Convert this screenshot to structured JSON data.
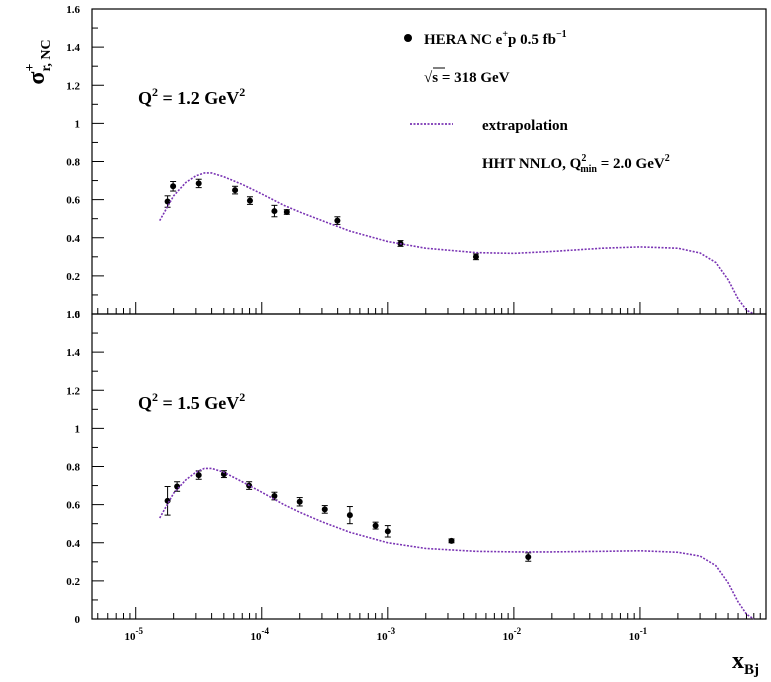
{
  "chart_data": [
    {
      "type": "scatter",
      "panel": "upper",
      "x_scale": "log",
      "xlim": [
        4.5e-06,
        1
      ],
      "ylim": [
        0,
        1.6
      ],
      "y_ticks": [
        "0",
        "0.2",
        "0.4",
        "0.6",
        "0.8",
        "1",
        "1.2",
        "1.4",
        "1.6"
      ],
      "annotation": {
        "base": "Q",
        "sup": "2",
        "value": " = 1.2 GeV",
        "unit_sup": "2"
      },
      "ylabel": {
        "base": "σ",
        "sup": "+",
        "sub": "r, NC"
      },
      "legend": {
        "placement": "top-right",
        "data_label": {
          "base": "HERA NC e",
          "sup1": "+",
          "mid": "p 0.5 fb",
          "sup2": "−1"
        },
        "energy_label": {
          "root": "√",
          "text": "s = 318 GeV"
        },
        "curve_label": "extrapolation",
        "fit_label": {
          "base": "HHT NNLO, Q",
          "sup": "2",
          "sub": "min",
          "rest": " = 2.0 GeV",
          "sup2": "2"
        }
      },
      "series": [
        {
          "name": "HERA NC e+p 0.5 fb-1",
          "kind": "points",
          "points": [
            {
              "x": 1.79e-05,
              "y": 0.59,
              "err": 0.03
            },
            {
              "x": 1.98e-05,
              "y": 0.67,
              "err": 0.025
            },
            {
              "x": 3.16e-05,
              "y": 0.685,
              "err": 0.022
            },
            {
              "x": 6.14e-05,
              "y": 0.65,
              "err": 0.02
            },
            {
              "x": 8.06e-05,
              "y": 0.595,
              "err": 0.02
            },
            {
              "x": 0.000126,
              "y": 0.54,
              "err": 0.03
            },
            {
              "x": 0.000158,
              "y": 0.535,
              "err": 0.012
            },
            {
              "x": 0.000398,
              "y": 0.49,
              "err": 0.02
            },
            {
              "x": 0.00126,
              "y": 0.37,
              "err": 0.015
            },
            {
              "x": 0.005,
              "y": 0.3,
              "err": 0.015
            }
          ]
        },
        {
          "name": "extrapolation",
          "kind": "curve",
          "color": "#7a34b4",
          "x": [
            1.55e-05,
            2e-05,
            2.5e-05,
            3e-05,
            3.5e-05,
            4e-05,
            5e-05,
            7e-05,
            0.0001,
            0.00015,
            0.0002,
            0.0003,
            0.0005,
            0.001,
            0.002,
            0.005,
            0.01,
            0.02,
            0.05,
            0.1,
            0.2,
            0.3,
            0.4,
            0.5,
            0.6,
            0.7,
            0.8
          ],
          "y": [
            0.49,
            0.62,
            0.69,
            0.725,
            0.74,
            0.74,
            0.72,
            0.68,
            0.63,
            0.57,
            0.535,
            0.49,
            0.435,
            0.38,
            0.345,
            0.322,
            0.318,
            0.328,
            0.345,
            0.352,
            0.345,
            0.32,
            0.27,
            0.18,
            0.08,
            0.02,
            0.0
          ]
        }
      ]
    },
    {
      "type": "scatter",
      "panel": "lower",
      "x_scale": "log",
      "xlim": [
        4.5e-06,
        1
      ],
      "ylim": [
        0,
        1.6
      ],
      "y_ticks": [
        "0",
        "0.2",
        "0.4",
        "0.6",
        "0.8",
        "1",
        "1.2",
        "1.4",
        "1.6"
      ],
      "x_ticks": [
        {
          "base": "10",
          "exp": "-5",
          "value": 1e-05
        },
        {
          "base": "10",
          "exp": "-4",
          "value": 0.0001
        },
        {
          "base": "10",
          "exp": "-3",
          "value": 0.001
        },
        {
          "base": "10",
          "exp": "-2",
          "value": 0.01
        },
        {
          "base": "10",
          "exp": "-1",
          "value": 0.1
        }
      ],
      "annotation": {
        "base": "Q",
        "sup": "2",
        "value": " = 1.5 GeV",
        "unit_sup": "2"
      },
      "xlabel": {
        "base": "x",
        "sub": "Bj"
      },
      "series": [
        {
          "name": "HERA NC e+p 0.5 fb-1",
          "kind": "points",
          "points": [
            {
              "x": 1.79e-05,
              "y": 0.62,
              "err": 0.075
            },
            {
              "x": 2.13e-05,
              "y": 0.695,
              "err": 0.025
            },
            {
              "x": 3.16e-05,
              "y": 0.755,
              "err": 0.022
            },
            {
              "x": 5.01e-05,
              "y": 0.76,
              "err": 0.018
            },
            {
              "x": 7.94e-05,
              "y": 0.7,
              "err": 0.02
            },
            {
              "x": 0.000126,
              "y": 0.645,
              "err": 0.02
            },
            {
              "x": 0.0002,
              "y": 0.615,
              "err": 0.022
            },
            {
              "x": 0.000316,
              "y": 0.575,
              "err": 0.02
            },
            {
              "x": 0.0005,
              "y": 0.545,
              "err": 0.045
            },
            {
              "x": 0.0008,
              "y": 0.49,
              "err": 0.018
            },
            {
              "x": 0.001,
              "y": 0.46,
              "err": 0.03
            },
            {
              "x": 0.0032,
              "y": 0.41,
              "err": 0.01
            },
            {
              "x": 0.013,
              "y": 0.325,
              "err": 0.022
            }
          ]
        },
        {
          "name": "extrapolation",
          "kind": "curve",
          "color": "#7a34b4",
          "x": [
            1.55e-05,
            2e-05,
            2.5e-05,
            3e-05,
            3.5e-05,
            4e-05,
            5e-05,
            7e-05,
            0.0001,
            0.00015,
            0.0002,
            0.0003,
            0.0005,
            0.001,
            0.002,
            0.005,
            0.01,
            0.02,
            0.05,
            0.1,
            0.2,
            0.3,
            0.4,
            0.5,
            0.6,
            0.7,
            0.8
          ],
          "y": [
            0.53,
            0.66,
            0.73,
            0.77,
            0.79,
            0.79,
            0.77,
            0.72,
            0.665,
            0.6,
            0.56,
            0.51,
            0.455,
            0.4,
            0.37,
            0.355,
            0.352,
            0.352,
            0.355,
            0.358,
            0.35,
            0.33,
            0.28,
            0.19,
            0.09,
            0.025,
            0.0
          ]
        }
      ]
    }
  ]
}
